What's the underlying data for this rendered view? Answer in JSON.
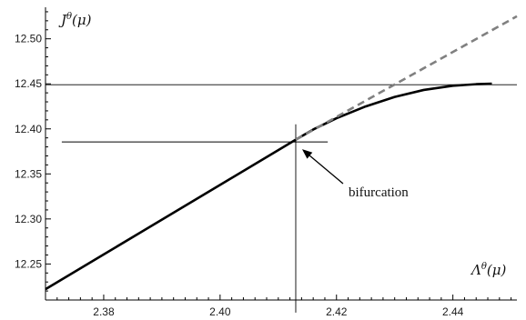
{
  "chart_data": {
    "type": "line",
    "xlabel": "Λ^θ(μ)",
    "ylabel": "J^θ(μ)",
    "xlim": [
      2.37,
      2.451
    ],
    "ylim": [
      12.21,
      12.535
    ],
    "x_ticks": [
      {
        "value": 2.38,
        "label": "2.38"
      },
      {
        "value": 2.4,
        "label": "2.40"
      },
      {
        "value": 2.42,
        "label": "2.42"
      },
      {
        "value": 2.44,
        "label": "2.44"
      }
    ],
    "y_ticks": [
      {
        "value": 12.25,
        "label": "12.25"
      },
      {
        "value": 12.3,
        "label": "12.30"
      },
      {
        "value": 12.35,
        "label": "12.35"
      },
      {
        "value": 12.4,
        "label": "12.40"
      },
      {
        "value": 12.45,
        "label": "12.45"
      },
      {
        "value": 12.5,
        "label": "12.50"
      }
    ],
    "series": [
      {
        "style": "solid",
        "color": "#000000",
        "x": [
          2.37,
          2.38,
          2.39,
          2.4,
          2.41,
          2.413,
          2.416,
          2.42,
          2.425,
          2.43,
          2.435,
          2.44,
          2.444,
          2.4467
        ],
        "y": [
          12.222,
          12.2606,
          12.2992,
          12.3378,
          12.3764,
          12.388,
          12.3993,
          12.4118,
          12.4249,
          12.4355,
          12.4432,
          12.4479,
          12.4496,
          12.4502
        ]
      },
      {
        "style": "dashed",
        "color": "#808080",
        "x": [
          2.413,
          2.451
        ],
        "y": [
          12.388,
          12.525
        ]
      }
    ],
    "reference_lines": [
      {
        "orientation": "horizontal",
        "value": 12.449,
        "x_range": [
          2.37,
          2.451
        ]
      },
      {
        "orientation": "horizontal",
        "value": 12.3855,
        "x_range": [
          2.3728,
          2.4185
        ]
      },
      {
        "orientation": "vertical",
        "value": 2.413,
        "y_range": [
          12.196,
          12.405
        ]
      }
    ],
    "annotation": {
      "text": "bifurcation",
      "point": {
        "x": 2.413,
        "y": 12.3855
      }
    }
  }
}
